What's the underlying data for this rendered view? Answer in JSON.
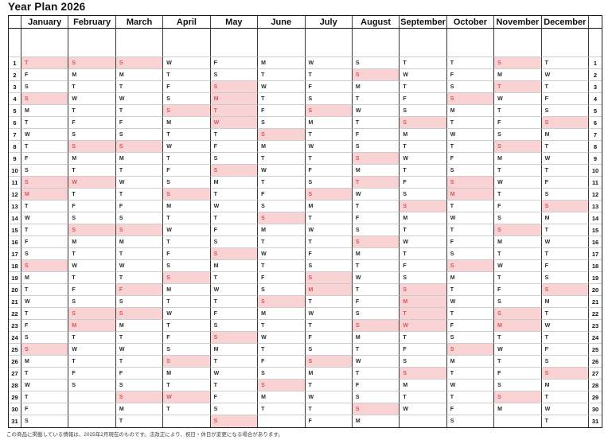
{
  "title": "Year Plan 2026",
  "footnote": "この商品に掲載している情報は、2025年2月現在のものです。法改正により、祝日・休日が変更になる場合があります。",
  "colors": {
    "highlight_bg": "#f9d2d4",
    "highlight_text": "#d05a5e",
    "grid_dark": "#1c1c1c",
    "grid_light": "#cccccc"
  },
  "row_numbers": [
    1,
    2,
    3,
    4,
    5,
    6,
    7,
    8,
    9,
    10,
    11,
    12,
    13,
    14,
    15,
    16,
    17,
    18,
    19,
    20,
    21,
    22,
    23,
    24,
    25,
    26,
    27,
    28,
    29,
    30,
    31
  ],
  "months": [
    {
      "name": "January",
      "letters": "TFSSMTWTFSSMTWTFSSMTWTFSSMTWTFS",
      "highlighted_days": [
        1,
        4,
        11,
        12,
        18,
        25
      ]
    },
    {
      "name": "February",
      "letters": "SMTWTFSSMTWTFSSMTWTFSSMTWTFS",
      "highlighted_days": [
        1,
        8,
        11,
        15,
        22,
        23
      ]
    },
    {
      "name": "March",
      "letters": "SMTWTFSSMTWTFSSMTWTFSSMTWTFSSMT",
      "highlighted_days": [
        1,
        8,
        15,
        20,
        22,
        29
      ]
    },
    {
      "name": "April",
      "letters": "WTFSSMTWTFSSMTWTFSSMTWTFSSMTWT",
      "highlighted_days": [
        5,
        12,
        19,
        26,
        29
      ]
    },
    {
      "name": "May",
      "letters": "FSSMTWTFSSMTWTFSSMTWTFSSMTWTFSS",
      "highlighted_days": [
        3,
        4,
        5,
        6,
        10,
        17,
        24,
        31
      ]
    },
    {
      "name": "June",
      "letters": "MTWTFSSMTWTFSSMTWTFSSMTWTFSSMT",
      "highlighted_days": [
        7,
        14,
        21,
        28
      ]
    },
    {
      "name": "July",
      "letters": "WTFSSMTWTFSSMTWTFSSMTWTFSSMTWTF",
      "highlighted_days": [
        5,
        12,
        19,
        20,
        26
      ]
    },
    {
      "name": "August",
      "letters": "SSMTWTFSSMTWTFSSMTWTFSSMTWTFSSM",
      "highlighted_days": [
        2,
        9,
        11,
        16,
        23,
        30
      ]
    },
    {
      "name": "September",
      "letters": "TWTFSSMTWTFSSMTWTFSSMTWTFSSMTW",
      "highlighted_days": [
        6,
        13,
        20,
        21,
        22,
        23,
        27
      ]
    },
    {
      "name": "October",
      "letters": "TFSSMTWTFSSMTWTFSSMTWTFSSMTWTFS",
      "highlighted_days": [
        4,
        11,
        12,
        18,
        25
      ]
    },
    {
      "name": "November",
      "letters": "SMTWTFSSMTWTFSSMTWTFSSMTWTFSSM",
      "highlighted_days": [
        1,
        3,
        8,
        15,
        22,
        23,
        29
      ]
    },
    {
      "name": "December",
      "letters": "TWTFSSMTWTFSSMTWTFSSMTWTFSSMTWT",
      "highlighted_days": [
        6,
        13,
        20,
        27
      ]
    }
  ]
}
